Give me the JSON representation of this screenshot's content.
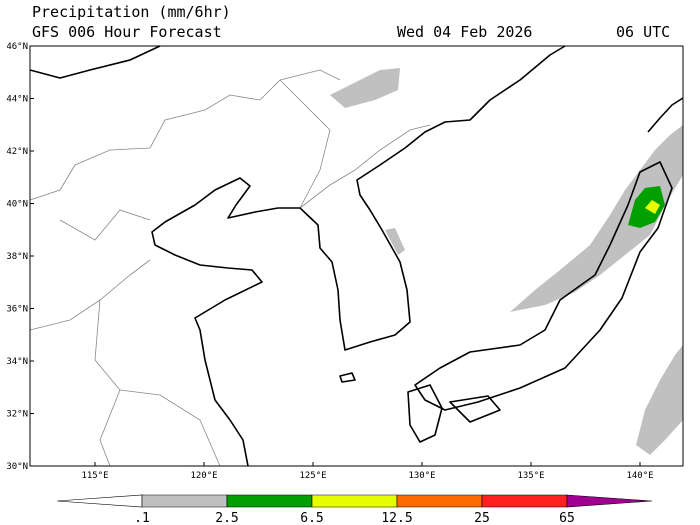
{
  "header": {
    "title": "Precipitation (mm/6hr)",
    "subtitle": "GFS 006 Hour Forecast",
    "date": "Wed 04 Feb 2026",
    "time": "06 UTC"
  },
  "map": {
    "lat_labels": [
      "30°N",
      "32°N",
      "34°N",
      "36°N",
      "38°N",
      "40°N",
      "42°N",
      "44°N",
      "46°N"
    ],
    "lon_labels": [
      "115°E",
      "120°E",
      "125°E",
      "130°E",
      "135°E",
      "140°E"
    ]
  },
  "colorbar": {
    "labels": [
      ".1",
      "2.5",
      "6.5",
      "12.5",
      "25",
      "65"
    ],
    "colors": [
      "#ffffff",
      "#c0c0c0",
      "#00a000",
      "#e6ff00",
      "#ff6a00",
      "#ff2020",
      "#a00090"
    ]
  }
}
